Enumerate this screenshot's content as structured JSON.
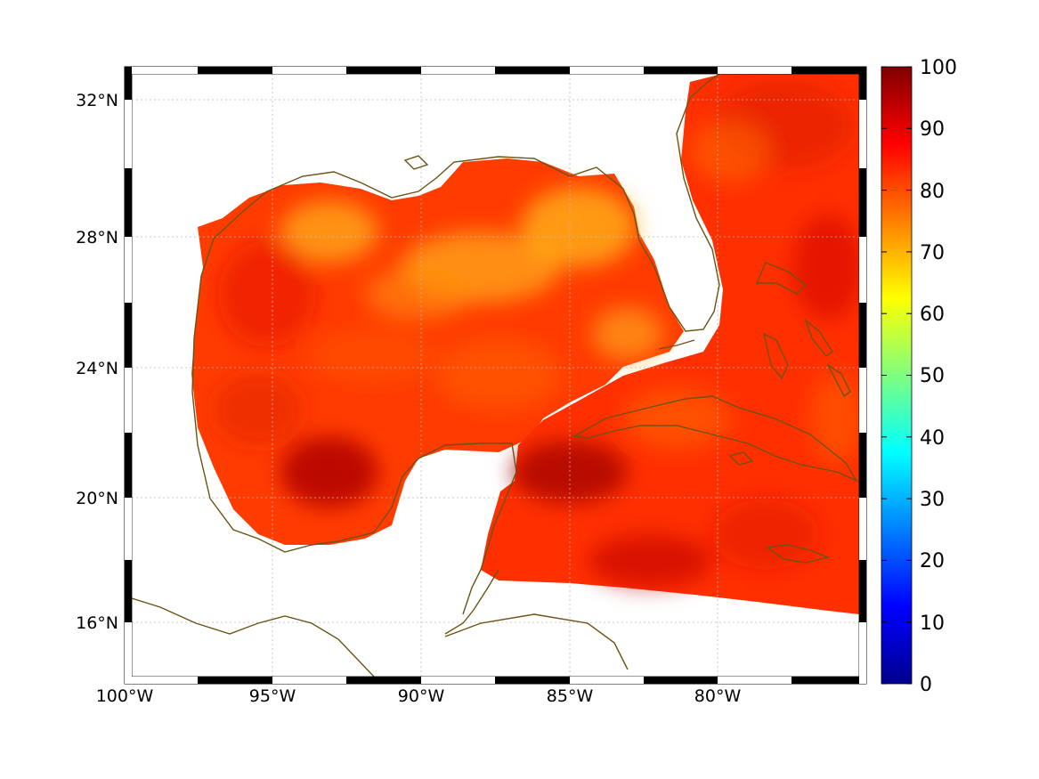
{
  "map": {
    "lat_ticks": [
      {
        "value": 32,
        "label": "32°N"
      },
      {
        "value": 28,
        "label": "28°N"
      },
      {
        "value": 24,
        "label": "24°N"
      },
      {
        "value": 20,
        "label": "20°N"
      },
      {
        "value": 16,
        "label": "16°N"
      }
    ],
    "lon_ticks": [
      {
        "value": -100,
        "label": "100°W"
      },
      {
        "value": -95,
        "label": "95°W"
      },
      {
        "value": -90,
        "label": "90°W"
      },
      {
        "value": -85,
        "label": "85°W"
      },
      {
        "value": -80,
        "label": "80°W"
      }
    ],
    "lon_range": [
      -100,
      -75
    ],
    "lat_range": [
      14.3,
      32.9
    ],
    "grid": true,
    "coastline_color": "#6b5314",
    "colormap": "jet"
  },
  "colorbar": {
    "range": [
      0,
      100
    ],
    "ticks": [
      "0",
      "10",
      "20",
      "30",
      "40",
      "50",
      "60",
      "70",
      "80",
      "90",
      "100"
    ],
    "position": "right"
  }
}
